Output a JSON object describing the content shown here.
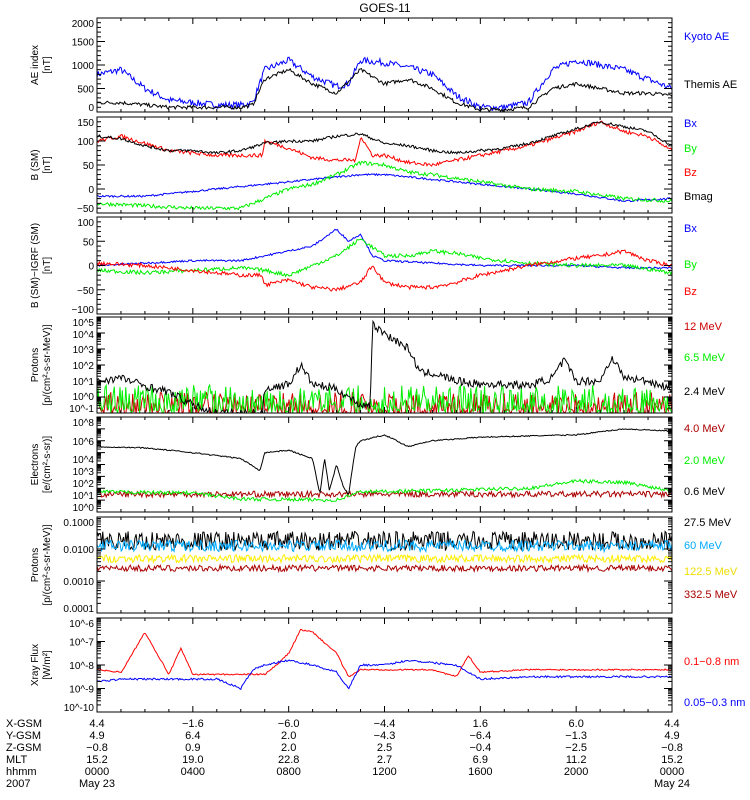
{
  "title": "GOES-11",
  "chart_data": [
    {
      "type": "line",
      "id": "ae",
      "ylabel": [
        "AE index",
        "[nT]"
      ],
      "scale": "linear",
      "ylim": [
        0,
        2000
      ],
      "xlim": [
        0,
        24
      ],
      "xunit": "hours UT",
      "ticks": [
        {
          "v": 2000,
          "label": "2000"
        },
        {
          "v": 1500,
          "label": "1500"
        },
        {
          "v": 1000,
          "label": "1000"
        },
        {
          "v": 500,
          "label": "500"
        },
        {
          "v": 0,
          "label": "0"
        }
      ],
      "series": [
        {
          "name": "Kyoto AE",
          "color": "#0000ff",
          "noise": 70,
          "t": [
            0,
            1,
            2,
            3,
            4,
            5,
            6,
            6.5,
            7,
            8,
            9,
            10,
            10.5,
            11,
            12,
            13,
            14,
            15,
            16,
            17,
            18,
            19,
            20,
            21,
            22,
            23,
            24
          ],
          "values": [
            800,
            900,
            500,
            250,
            200,
            150,
            150,
            200,
            900,
            1100,
            750,
            550,
            600,
            1100,
            1050,
            950,
            800,
            350,
            100,
            100,
            200,
            900,
            1100,
            1000,
            900,
            700,
            500
          ]
        },
        {
          "name": "Themis AE",
          "color": "#000000",
          "noise": 40,
          "t": [
            0,
            1,
            2,
            3,
            4,
            5,
            6,
            6.5,
            7,
            8,
            9,
            10,
            11,
            12,
            13,
            14,
            15,
            16,
            17,
            18,
            19,
            20,
            21,
            22,
            23,
            24
          ],
          "values": [
            200,
            200,
            150,
            100,
            100,
            100,
            100,
            150,
            700,
            900,
            600,
            400,
            900,
            600,
            700,
            500,
            200,
            50,
            50,
            100,
            500,
            600,
            500,
            400,
            400,
            350
          ]
        }
      ]
    },
    {
      "type": "line",
      "id": "bsm",
      "ylabel": [
        "B (SM)",
        "[nT]"
      ],
      "scale": "linear",
      "ylim": [
        -50,
        150
      ],
      "ticks": [
        {
          "v": 150,
          "label": "150"
        },
        {
          "v": 100,
          "label": "100"
        },
        {
          "v": 50,
          "label": "50"
        },
        {
          "v": 0,
          "label": "0"
        },
        {
          "v": -50,
          "label": "−50"
        }
      ],
      "series": [
        {
          "name": "Bx",
          "color": "#0000ff",
          "noise": 2,
          "t": [
            0,
            2,
            4,
            6,
            8,
            10,
            11,
            12,
            13,
            14,
            16,
            18,
            20,
            22,
            24
          ],
          "values": [
            -15,
            -15,
            -5,
            5,
            15,
            25,
            30,
            30,
            25,
            20,
            10,
            0,
            -10,
            -25,
            -20
          ]
        },
        {
          "name": "By",
          "color": "#00ee00",
          "noise": 4,
          "t": [
            0,
            2,
            4,
            6,
            7,
            8,
            9,
            10,
            11,
            12,
            13,
            14,
            16,
            18,
            20,
            22,
            24
          ],
          "values": [
            -30,
            -35,
            -40,
            -40,
            -20,
            0,
            10,
            30,
            55,
            50,
            35,
            30,
            15,
            0,
            -5,
            -20,
            -25
          ]
        },
        {
          "name": "Bz",
          "color": "#ff0000",
          "noise": 4,
          "t": [
            0,
            1,
            2,
            3,
            4,
            5,
            6,
            6.9,
            7,
            8,
            9,
            10,
            10.8,
            11,
            11.5,
            12,
            13,
            14,
            15,
            16,
            18,
            20,
            21,
            22,
            23,
            24
          ],
          "values": [
            100,
            110,
            95,
            80,
            75,
            70,
            70,
            70,
            100,
            85,
            65,
            60,
            60,
            110,
            70,
            70,
            55,
            50,
            60,
            70,
            90,
            120,
            140,
            120,
            110,
            80
          ]
        },
        {
          "name": "Bmag",
          "color": "#000000",
          "noise": 3,
          "t": [
            0,
            1,
            2,
            3,
            4,
            5,
            6,
            7,
            8,
            9,
            10,
            11,
            12,
            13,
            14,
            15,
            16,
            17,
            18,
            19,
            20,
            21,
            22,
            23,
            24
          ],
          "values": [
            110,
            105,
            90,
            80,
            80,
            75,
            80,
            95,
            100,
            100,
            110,
            115,
            95,
            90,
            80,
            75,
            80,
            85,
            95,
            110,
            125,
            140,
            130,
            120,
            90
          ]
        }
      ]
    },
    {
      "type": "line",
      "id": "bigrf",
      "ylabel": [
        "B (SM)−IGRF (SM)",
        "[nT]"
      ],
      "scale": "linear",
      "ylim": [
        -100,
        100
      ],
      "ticks": [
        {
          "v": 100,
          "label": "100"
        },
        {
          "v": 50,
          "label": "50"
        },
        {
          "v": 0,
          "label": "0"
        },
        {
          "v": -50,
          "label": "−50"
        },
        {
          "v": -100,
          "label": "−100"
        }
      ],
      "series": [
        {
          "name": "Bx",
          "color": "#0000ff",
          "noise": 2,
          "t": [
            0,
            2,
            4,
            6,
            7,
            8,
            9,
            10,
            10.5,
            11,
            11.5,
            12,
            14,
            16,
            18,
            20,
            22,
            24
          ],
          "values": [
            0,
            5,
            10,
            10,
            20,
            30,
            40,
            75,
            50,
            65,
            20,
            10,
            5,
            0,
            0,
            0,
            -5,
            -5
          ]
        },
        {
          "name": "By",
          "color": "#00ee00",
          "noise": 4,
          "t": [
            0,
            2,
            4,
            6,
            7,
            8,
            9,
            10,
            11,
            12,
            13,
            14,
            15,
            16,
            18,
            20,
            22,
            24
          ],
          "values": [
            -10,
            -15,
            -10,
            -5,
            -10,
            -20,
            0,
            20,
            55,
            20,
            20,
            30,
            25,
            15,
            5,
            0,
            0,
            -15
          ]
        },
        {
          "name": "Bz",
          "color": "#ff0000",
          "noise": 4,
          "t": [
            0,
            2,
            4,
            6,
            6.9,
            7,
            8,
            9,
            10,
            11,
            11.5,
            12,
            13,
            14,
            15,
            16,
            18,
            20,
            21,
            22,
            23,
            24
          ],
          "values": [
            5,
            0,
            -10,
            -20,
            -20,
            -40,
            -30,
            -45,
            -50,
            -35,
            0,
            -35,
            -45,
            -45,
            -35,
            -20,
            0,
            15,
            20,
            30,
            10,
            0
          ]
        }
      ]
    },
    {
      "type": "line",
      "id": "protons-low",
      "ylabel": [
        "Protons",
        "[p/(cm²-s-sr-MeV)]"
      ],
      "scale": "log",
      "ylim": [
        -1,
        5
      ],
      "ticks": [
        {
          "v": 5,
          "label": "10^5"
        },
        {
          "v": 4,
          "label": "10^4"
        },
        {
          "v": 3,
          "label": "10^3"
        },
        {
          "v": 2,
          "label": "10^2"
        },
        {
          "v": 1,
          "label": "10^1"
        },
        {
          "v": 0,
          "label": "10^0"
        },
        {
          "v": -1,
          "label": "10^-1"
        }
      ],
      "series": [
        {
          "name": "12 MeV",
          "color": "#cc0000",
          "noise": 0.35,
          "spiky": true,
          "t": [
            0,
            24
          ],
          "values": [
            -1.1,
            -1.1
          ]
        },
        {
          "name": "6.5 MeV",
          "color": "#00ee00",
          "noise": 0.45,
          "spiky": true,
          "t": [
            0,
            24
          ],
          "values": [
            -1.05,
            -1.05
          ]
        },
        {
          "name": "2.4 MeV",
          "color": "#000000",
          "noise": 0.25,
          "t": [
            0,
            1,
            2,
            3,
            4,
            5,
            6,
            6.9,
            7,
            8,
            8.5,
            9,
            10,
            11,
            11.4,
            11.5,
            12,
            13,
            13.5,
            14,
            15,
            16,
            17,
            18,
            19,
            19.5,
            20,
            21,
            21.5,
            22,
            23,
            24
          ],
          "values": [
            1,
            1.2,
            0.7,
            0.3,
            -0.5,
            -1,
            -1,
            -1,
            0.5,
            0.8,
            2,
            0.8,
            0.5,
            -0.5,
            -0.5,
            4.5,
            4,
            3,
            1.5,
            1.5,
            1,
            0.8,
            0.8,
            0.7,
            1.2,
            2.3,
            1,
            1,
            2.5,
            1.2,
            1,
            0.5
          ]
        }
      ]
    },
    {
      "type": "line",
      "id": "electrons",
      "ylabel": [
        "Electrons",
        "[e/(cm²-s-sr)]"
      ],
      "scale": "log",
      "ylim": [
        0,
        8
      ],
      "ticks": [
        {
          "v": 8,
          "label": "10^8"
        },
        {
          "v": 6,
          "label": "10^6"
        },
        {
          "v": 4,
          "label": "10^4"
        },
        {
          "v": 3,
          "label": "10^3"
        },
        {
          "v": 2,
          "label": "10^2"
        },
        {
          "v": 1,
          "label": "10^1"
        },
        {
          "v": 0,
          "label": "10^0"
        }
      ],
      "series": [
        {
          "name": "4.0 MeV",
          "color": "#aa0000",
          "noise": 0.25,
          "t": [
            0,
            24
          ],
          "values": [
            1.5,
            1.5
          ]
        },
        {
          "name": "2.0 MeV",
          "color": "#00ee00",
          "noise": 0.15,
          "t": [
            0,
            4,
            6,
            10,
            11,
            14,
            18,
            20,
            22,
            24
          ],
          "values": [
            1.7,
            1.6,
            1.1,
            1.0,
            1.7,
            1.8,
            2.0,
            2.6,
            2.5,
            1.8
          ]
        },
        {
          "name": "0.6 MeV",
          "color": "#000000",
          "noise": 0.05,
          "t": [
            0,
            2,
            4,
            6,
            6.8,
            7,
            8,
            9,
            9.3,
            9.5,
            9.7,
            10,
            10.3,
            10.5,
            10.8,
            11,
            12,
            13,
            13.5,
            14,
            16,
            20,
            22,
            24
          ],
          "values": [
            5.5,
            5.4,
            5,
            4.5,
            3.5,
            5,
            5.2,
            4.5,
            1.5,
            4.5,
            1.8,
            4,
            2,
            1.5,
            5.5,
            6,
            6.5,
            5.5,
            5.8,
            6,
            6.3,
            6.5,
            7,
            6.8
          ]
        }
      ]
    },
    {
      "type": "line",
      "id": "protons-high",
      "ylabel": [
        "Protons",
        "[p/(cm²-s-sr-MeV)]"
      ],
      "scale": "log",
      "ylim": [
        -4,
        -1
      ],
      "ticks": [
        {
          "v": -1,
          "label": "0.1000"
        },
        {
          "v": -2,
          "label": "0.0100"
        },
        {
          "v": -3,
          "label": "0.0010"
        },
        {
          "v": -4,
          "label": "0.0001"
        }
      ],
      "series": [
        {
          "name": "27.5 MeV",
          "color": "#000000",
          "noise": 0.3,
          "t": [
            0,
            24
          ],
          "values": [
            -1.75,
            -1.75
          ]
        },
        {
          "name": "60 MeV",
          "color": "#00aaff",
          "noise": 0.18,
          "t": [
            0,
            24
          ],
          "values": [
            -1.9,
            -1.9
          ]
        },
        {
          "name": "122.5 MeV",
          "color": "#ffee00",
          "noise": 0.12,
          "t": [
            0,
            24
          ],
          "values": [
            -2.3,
            -2.3
          ]
        },
        {
          "name": "332.5 MeV",
          "color": "#aa0000",
          "noise": 0.1,
          "t": [
            0,
            24
          ],
          "values": [
            -2.6,
            -2.6
          ]
        }
      ]
    },
    {
      "type": "line",
      "id": "xray",
      "ylabel": [
        "Xray Flux",
        "[W/m²]"
      ],
      "scale": "log",
      "ylim": [
        -10,
        -6
      ],
      "ticks": [
        {
          "v": -6,
          "label": "10^-6"
        },
        {
          "v": -7,
          "label": "10^-7"
        },
        {
          "v": -8,
          "label": "10^-8"
        },
        {
          "v": -9,
          "label": "10^-9"
        },
        {
          "v": -10,
          "label": "10^-10"
        }
      ],
      "series": [
        {
          "name": "0.1−0.8 nm",
          "color": "#ff0000",
          "noise": 0.03,
          "t": [
            0,
            1,
            1.2,
            2,
            2.5,
            3,
            3.5,
            4,
            7,
            7.5,
            8,
            8.5,
            9,
            10,
            10.5,
            11,
            12,
            14,
            15,
            15.5,
            16,
            18,
            24
          ],
          "values": [
            -8.2,
            -8.3,
            -8,
            -6.6,
            -7.5,
            -8.4,
            -7.3,
            -8.4,
            -8.4,
            -8,
            -7.5,
            -6.5,
            -6.6,
            -7.5,
            -8.5,
            -8.2,
            -8.2,
            -8.2,
            -8.5,
            -7.6,
            -8.3,
            -8.2,
            -8.2
          ]
        },
        {
          "name": "0.05−0.3 nm",
          "color": "#0000ff",
          "noise": 0.04,
          "t": [
            0,
            1,
            5,
            6,
            6.5,
            7,
            8,
            9,
            10,
            10.5,
            11,
            12,
            13,
            14,
            15,
            16,
            18,
            24
          ],
          "values": [
            -8.7,
            -8.6,
            -8.6,
            -9,
            -8.2,
            -8,
            -7.8,
            -8,
            -8.3,
            -9,
            -8,
            -8,
            -7.8,
            -7.9,
            -8,
            -8.6,
            -8.5,
            -8.5
          ]
        }
      ]
    }
  ],
  "ephemeris": {
    "rows": [
      {
        "label": "X-GSM",
        "values": [
          "4.4",
          "−1.6",
          "−6.0",
          "−4.4",
          "1.6",
          "6.0",
          "4.4"
        ]
      },
      {
        "label": "Y-GSM",
        "values": [
          "4.9",
          "6.4",
          "2.0",
          "−4.3",
          "−6.4",
          "−1.3",
          "4.9"
        ]
      },
      {
        "label": "Z-GSM",
        "values": [
          "−0.8",
          "0.9",
          "2.0",
          "2.5",
          "−0.4",
          "−2.5",
          "−0.8"
        ]
      },
      {
        "label": "MLT",
        "values": [
          "15.2",
          "19.0",
          "22.8",
          "2.7",
          "6.9",
          "11.2",
          "15.2"
        ]
      },
      {
        "label": "hhmm",
        "values": [
          "0000",
          "0400",
          "0800",
          "1200",
          "1600",
          "2000",
          "0000"
        ]
      },
      {
        "label": "2007",
        "values": [
          "May 23",
          "",
          "",
          "",
          "",
          "",
          "May 24"
        ]
      }
    ]
  }
}
